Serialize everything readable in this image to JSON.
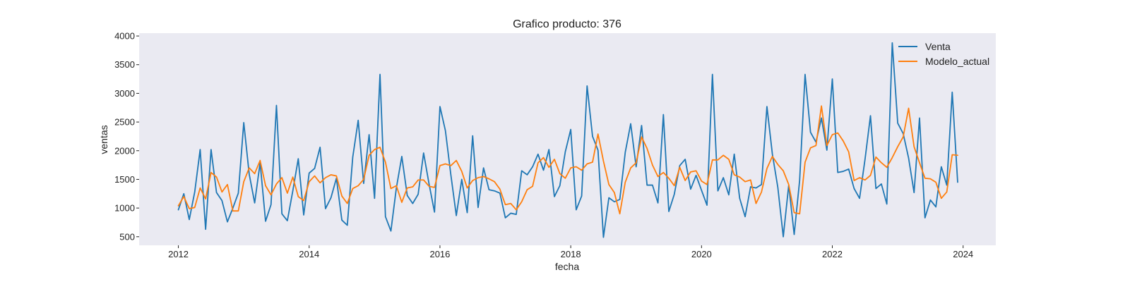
{
  "chart_data": {
    "type": "line",
    "title": "Grafico producto: 376",
    "xlabel": "fecha",
    "ylabel": "ventas",
    "xlim": [
      2011.4,
      2024.5
    ],
    "ylim": [
      350,
      4050
    ],
    "x_ticks": [
      2012,
      2014,
      2016,
      2018,
      2020,
      2022,
      2024
    ],
    "y_ticks": [
      500,
      1000,
      1500,
      2000,
      2500,
      3000,
      3500,
      4000
    ],
    "grid": false,
    "legend_position": "top-right",
    "plot_background": "#EAEAF2",
    "series": [
      {
        "name": "Venta",
        "color": "#1f77b4",
        "x_start": 2012.0,
        "x_step_months": 1,
        "values": [
          970,
          1250,
          800,
          1280,
          2020,
          630,
          2020,
          1270,
          1130,
          760,
          1000,
          1260,
          2490,
          1590,
          1090,
          1790,
          770,
          1060,
          2790,
          900,
          780,
          1300,
          1860,
          880,
          1610,
          1690,
          2060,
          990,
          1180,
          1520,
          790,
          700,
          1890,
          2530,
          1430,
          2280,
          1170,
          3330,
          850,
          600,
          1350,
          1900,
          1220,
          1080,
          1240,
          1960,
          1420,
          930,
          2770,
          2350,
          1580,
          870,
          1500,
          920,
          2260,
          1010,
          1700,
          1320,
          1300,
          1260,
          830,
          910,
          890,
          1650,
          1580,
          1720,
          1940,
          1660,
          2020,
          1200,
          1390,
          1980,
          2370,
          970,
          1210,
          3130,
          2250,
          2010,
          490,
          1180,
          1110,
          1150,
          1970,
          2470,
          1720,
          2440,
          1400,
          1400,
          1090,
          2630,
          940,
          1240,
          1740,
          1850,
          1330,
          1570,
          1310,
          1050,
          3330,
          1300,
          1530,
          1230,
          1940,
          1170,
          850,
          1370,
          1350,
          1410,
          2770,
          1940,
          1360,
          500,
          1400,
          540,
          1480,
          3330,
          2320,
          2150,
          2570,
          2010,
          3250,
          1620,
          1640,
          1680,
          1340,
          1170,
          1850,
          2610,
          1340,
          1420,
          1070,
          3880,
          2480,
          2300,
          1870,
          1270,
          2570,
          830,
          1140,
          1020,
          1720,
          1400,
          3020,
          1450
        ]
      },
      {
        "name": "Modelo_actual",
        "color": "#ff7f0e",
        "x_start": 2012.0,
        "x_step_months": 1,
        "values": [
          1040,
          1200,
          990,
          1010,
          1350,
          1160,
          1620,
          1540,
          1280,
          1410,
          950,
          950,
          1460,
          1700,
          1600,
          1830,
          1390,
          1230,
          1420,
          1530,
          1260,
          1540,
          1200,
          1130,
          1460,
          1560,
          1440,
          1530,
          1580,
          1560,
          1210,
          1080,
          1340,
          1390,
          1500,
          1920,
          2020,
          2060,
          1800,
          1340,
          1390,
          1100,
          1350,
          1370,
          1490,
          1490,
          1380,
          1360,
          1740,
          1770,
          1740,
          1830,
          1640,
          1350,
          1480,
          1530,
          1550,
          1510,
          1460,
          1330,
          1060,
          1080,
          970,
          1110,
          1320,
          1380,
          1790,
          1880,
          1710,
          1850,
          1600,
          1520,
          1700,
          1720,
          1660,
          1770,
          1800,
          2290,
          1820,
          1410,
          1270,
          900,
          1450,
          1700,
          1790,
          2240,
          2040,
          1750,
          1550,
          1620,
          1520,
          1390,
          1710,
          1480,
          1630,
          1650,
          1470,
          1410,
          1840,
          1840,
          1920,
          1850,
          1580,
          1540,
          1460,
          1490,
          1080,
          1280,
          1690,
          1900,
          1760,
          1650,
          1410,
          920,
          900,
          1800,
          2050,
          2090,
          2780,
          2090,
          2280,
          2310,
          2170,
          1980,
          1480,
          1530,
          1490,
          1570,
          1890,
          1790,
          1710,
          1880,
          2070,
          2240,
          2740,
          2070,
          1790,
          1520,
          1510,
          1450,
          1170,
          1280,
          1930,
          1920
        ]
      }
    ]
  }
}
